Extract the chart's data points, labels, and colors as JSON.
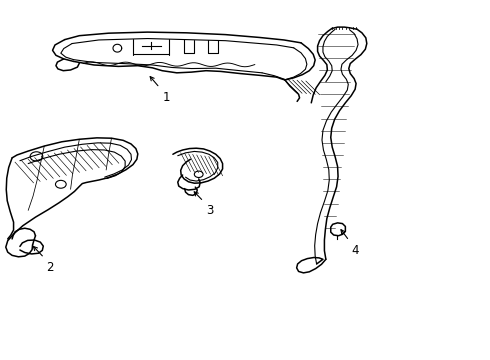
{
  "background_color": "#ffffff",
  "line_color": "#000000",
  "line_width": 0.8,
  "fig_width": 4.9,
  "fig_height": 3.6,
  "dpi": 100
}
